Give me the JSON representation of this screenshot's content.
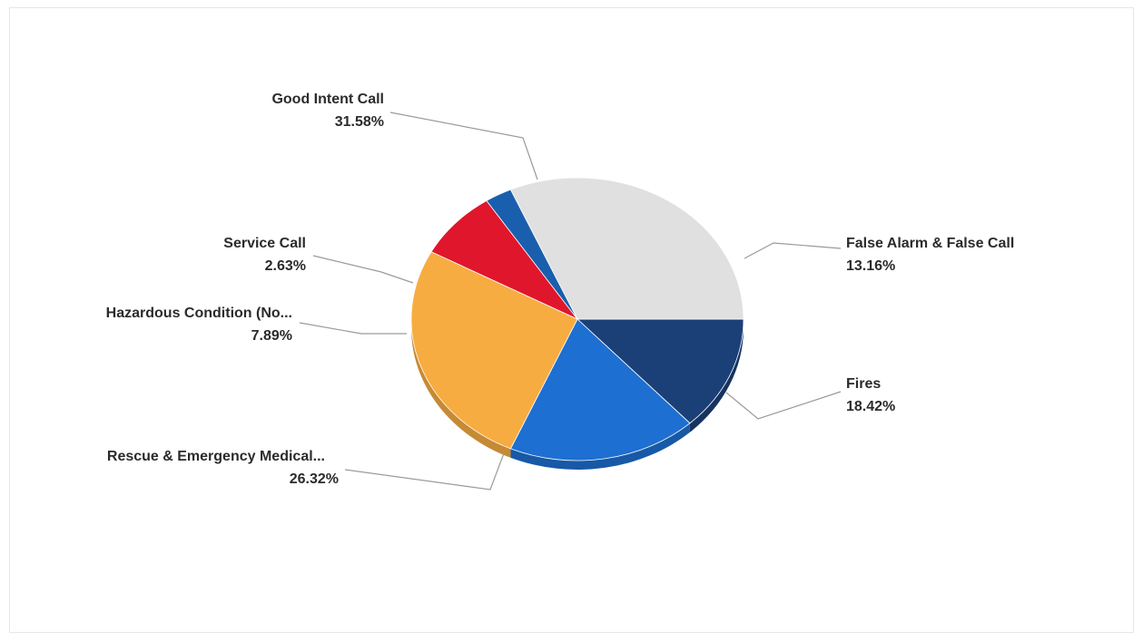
{
  "chart_data": {
    "type": "pie",
    "title": "",
    "slices": [
      {
        "name": "False Alarm & False Call",
        "percent_label": "13.16%",
        "value": 13.16,
        "color": "#1b4078"
      },
      {
        "name": "Fires",
        "percent_label": "18.42%",
        "value": 18.42,
        "color": "#1d6fd1"
      },
      {
        "name": "Rescue & Emergency Medical...",
        "percent_label": "26.32%",
        "value": 26.32,
        "color": "#f7ac41"
      },
      {
        "name": "Hazardous Condition (No...",
        "percent_label": "7.89%",
        "value": 7.89,
        "color": "#e0162c"
      },
      {
        "name": "Service Call",
        "percent_label": "2.63%",
        "value": 2.63,
        "color": "#1a5fad"
      },
      {
        "name": "Good Intent Call",
        "percent_label": "31.58%",
        "value": 31.58,
        "color": "#e0e0e0"
      }
    ]
  }
}
